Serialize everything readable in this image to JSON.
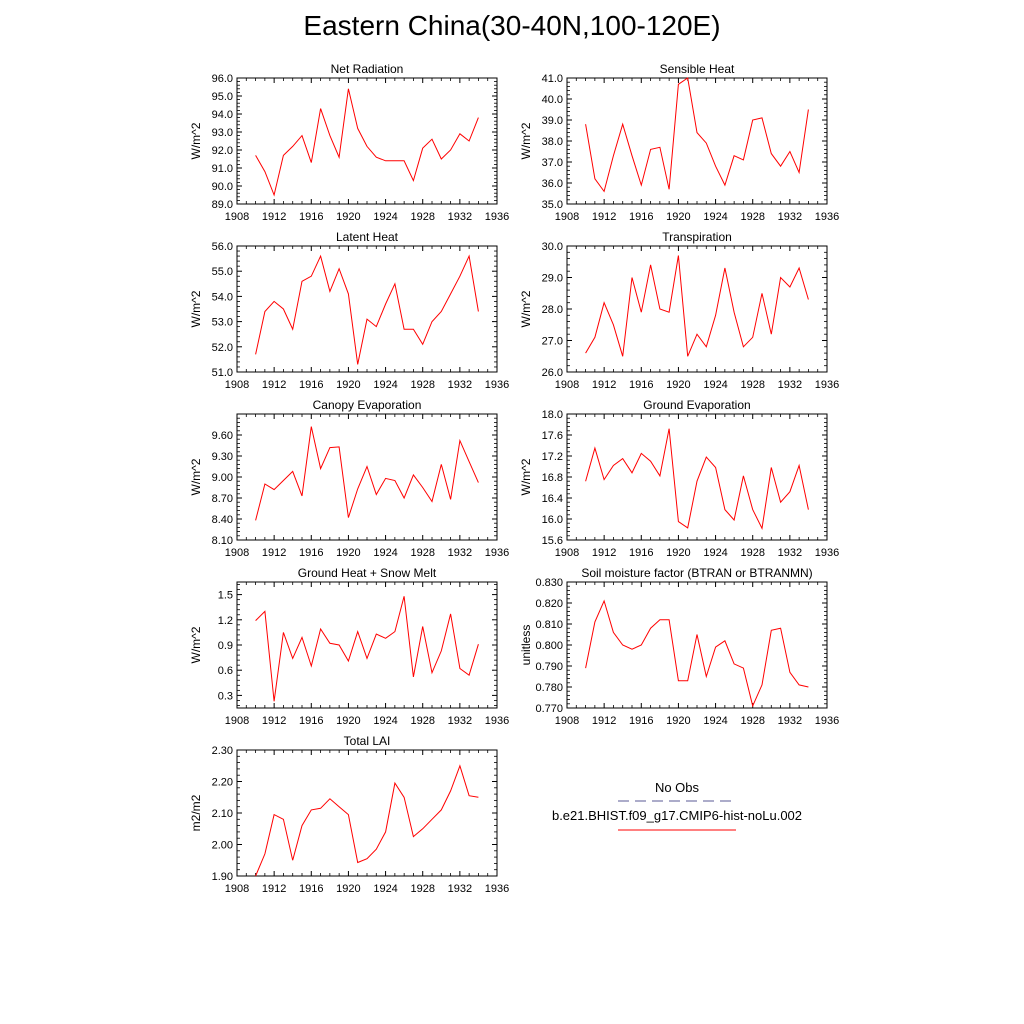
{
  "title": "Eastern China(30-40N,100-120E)",
  "colors": {
    "model": "#ff0000",
    "obs": "#5a5a96",
    "axis": "#000000"
  },
  "legend": {
    "obs_label": "No Obs",
    "model_label": "b.e21.BHIST.f09_g17.CMIP6-hist-noLu.002"
  },
  "chart_data": [
    {
      "type": "line",
      "title": "Net Radiation",
      "ylabel": "W/m^2",
      "xlim": [
        1908,
        1936
      ],
      "xticks": [
        1908,
        1912,
        1916,
        1920,
        1924,
        1928,
        1932,
        1936
      ],
      "ylim": [
        89.0,
        96.0
      ],
      "yticks": [
        89.0,
        90.0,
        91.0,
        92.0,
        93.0,
        94.0,
        95.0,
        96.0
      ],
      "ytick_labels": [
        "89.0",
        "90.0",
        "91.0",
        "92.0",
        "93.0",
        "94.0",
        "95.0",
        "96.0"
      ],
      "x": [
        1910,
        1911,
        1912,
        1913,
        1914,
        1915,
        1916,
        1917,
        1918,
        1919,
        1920,
        1921,
        1922,
        1923,
        1924,
        1925,
        1926,
        1927,
        1928,
        1929,
        1930,
        1931,
        1932,
        1933,
        1934
      ],
      "series": [
        {
          "values": [
            91.7,
            90.8,
            89.5,
            91.7,
            92.2,
            92.8,
            91.3,
            94.3,
            92.8,
            91.6,
            95.4,
            93.2,
            92.2,
            91.6,
            91.4,
            91.4,
            91.4,
            90.3,
            92.1,
            92.6,
            91.5,
            92.0,
            92.9,
            92.5,
            93.8
          ]
        }
      ]
    },
    {
      "type": "line",
      "title": "Sensible Heat",
      "ylabel": "W/m^2",
      "xlim": [
        1908,
        1936
      ],
      "xticks": [
        1908,
        1912,
        1916,
        1920,
        1924,
        1928,
        1932,
        1936
      ],
      "ylim": [
        35.0,
        41.0
      ],
      "yticks": [
        35.0,
        36.0,
        37.0,
        38.0,
        39.0,
        40.0,
        41.0
      ],
      "ytick_labels": [
        "35.0",
        "36.0",
        "37.0",
        "38.0",
        "39.0",
        "40.0",
        "41.0"
      ],
      "x": [
        1910,
        1911,
        1912,
        1913,
        1914,
        1915,
        1916,
        1917,
        1918,
        1919,
        1920,
        1921,
        1922,
        1923,
        1924,
        1925,
        1926,
        1927,
        1928,
        1929,
        1930,
        1931,
        1932,
        1933,
        1934
      ],
      "series": [
        {
          "values": [
            38.8,
            36.2,
            35.6,
            37.3,
            38.8,
            37.3,
            35.9,
            37.6,
            37.7,
            35.7,
            40.7,
            41.0,
            38.4,
            37.9,
            36.8,
            35.9,
            37.3,
            37.1,
            39.0,
            39.1,
            37.4,
            36.8,
            37.5,
            36.5,
            39.5
          ]
        }
      ]
    },
    {
      "type": "line",
      "title": "Latent Heat",
      "ylabel": "W/m^2",
      "xlim": [
        1908,
        1936
      ],
      "xticks": [
        1908,
        1912,
        1916,
        1920,
        1924,
        1928,
        1932,
        1936
      ],
      "ylim": [
        51.0,
        56.0
      ],
      "yticks": [
        51.0,
        52.0,
        53.0,
        54.0,
        55.0,
        56.0
      ],
      "ytick_labels": [
        "51.0",
        "52.0",
        "53.0",
        "54.0",
        "55.0",
        "56.0"
      ],
      "x": [
        1910,
        1911,
        1912,
        1913,
        1914,
        1915,
        1916,
        1917,
        1918,
        1919,
        1920,
        1921,
        1922,
        1923,
        1924,
        1925,
        1926,
        1927,
        1928,
        1929,
        1930,
        1931,
        1932,
        1933,
        1934
      ],
      "series": [
        {
          "values": [
            51.7,
            53.4,
            53.8,
            53.5,
            52.7,
            54.6,
            54.8,
            55.6,
            54.2,
            55.1,
            54.1,
            51.3,
            53.1,
            52.8,
            53.7,
            54.5,
            52.7,
            52.7,
            52.1,
            53.0,
            53.4,
            54.1,
            54.8,
            55.6,
            53.4
          ]
        }
      ]
    },
    {
      "type": "line",
      "title": "Transpiration",
      "ylabel": "W/m^2",
      "xlim": [
        1908,
        1936
      ],
      "xticks": [
        1908,
        1912,
        1916,
        1920,
        1924,
        1928,
        1932,
        1936
      ],
      "ylim": [
        26.0,
        30.0
      ],
      "yticks": [
        26.0,
        27.0,
        28.0,
        29.0,
        30.0
      ],
      "ytick_labels": [
        "26.0",
        "27.0",
        "28.0",
        "29.0",
        "30.0"
      ],
      "x": [
        1910,
        1911,
        1912,
        1913,
        1914,
        1915,
        1916,
        1917,
        1918,
        1919,
        1920,
        1921,
        1922,
        1923,
        1924,
        1925,
        1926,
        1927,
        1928,
        1929,
        1930,
        1931,
        1932,
        1933,
        1934
      ],
      "series": [
        {
          "values": [
            26.6,
            27.1,
            28.2,
            27.5,
            26.5,
            29.0,
            27.9,
            29.4,
            28.0,
            27.9,
            29.7,
            26.5,
            27.2,
            26.8,
            27.8,
            29.3,
            27.9,
            26.8,
            27.1,
            28.5,
            27.2,
            29.0,
            28.7,
            29.3,
            28.3
          ]
        }
      ]
    },
    {
      "type": "line",
      "title": "Canopy Evaporation",
      "ylabel": "W/m^2",
      "xlim": [
        1908,
        1936
      ],
      "xticks": [
        1908,
        1912,
        1916,
        1920,
        1924,
        1928,
        1932,
        1936
      ],
      "ylim": [
        8.1,
        9.9
      ],
      "yticks": [
        8.1,
        8.4,
        8.7,
        9.0,
        9.3,
        9.6
      ],
      "ytick_labels": [
        "8.10",
        "8.40",
        "8.70",
        "9.00",
        "9.30",
        "9.60"
      ],
      "x": [
        1910,
        1911,
        1912,
        1913,
        1914,
        1915,
        1916,
        1917,
        1918,
        1919,
        1920,
        1921,
        1922,
        1923,
        1924,
        1925,
        1926,
        1927,
        1928,
        1929,
        1930,
        1931,
        1932,
        1933,
        1934
      ],
      "series": [
        {
          "values": [
            8.38,
            8.9,
            8.82,
            8.95,
            9.08,
            8.73,
            9.72,
            9.12,
            9.42,
            9.43,
            8.42,
            8.83,
            9.15,
            8.75,
            8.98,
            8.95,
            8.7,
            9.03,
            8.85,
            8.65,
            9.18,
            8.68,
            9.52,
            9.22,
            8.92
          ]
        }
      ]
    },
    {
      "type": "line",
      "title": "Ground Evaporation",
      "ylabel": "W/m^2",
      "xlim": [
        1908,
        1936
      ],
      "xticks": [
        1908,
        1912,
        1916,
        1920,
        1924,
        1928,
        1932,
        1936
      ],
      "ylim": [
        15.6,
        18.0
      ],
      "yticks": [
        15.6,
        16.0,
        16.4,
        16.8,
        17.2,
        17.6,
        18.0
      ],
      "ytick_labels": [
        "15.6",
        "16.0",
        "16.4",
        "16.8",
        "17.2",
        "17.6",
        "18.0"
      ],
      "x": [
        1910,
        1911,
        1912,
        1913,
        1914,
        1915,
        1916,
        1917,
        1918,
        1919,
        1920,
        1921,
        1922,
        1923,
        1924,
        1925,
        1926,
        1927,
        1928,
        1929,
        1930,
        1931,
        1932,
        1933,
        1934
      ],
      "series": [
        {
          "values": [
            16.72,
            17.35,
            16.75,
            17.02,
            17.15,
            16.88,
            17.25,
            17.1,
            16.82,
            17.72,
            15.95,
            15.83,
            16.72,
            17.18,
            16.98,
            16.18,
            15.98,
            16.82,
            16.18,
            15.82,
            16.98,
            16.32,
            16.52,
            17.02,
            16.18
          ]
        }
      ]
    },
    {
      "type": "line",
      "title": "Ground Heat + Snow Melt",
      "ylabel": "W/m^2",
      "xlim": [
        1908,
        1936
      ],
      "xticks": [
        1908,
        1912,
        1916,
        1920,
        1924,
        1928,
        1932,
        1936
      ],
      "ylim": [
        0.15,
        1.65
      ],
      "yticks": [
        0.3,
        0.6,
        0.9,
        1.2,
        1.5
      ],
      "ytick_labels": [
        "0.3",
        "0.6",
        "0.9",
        "1.2",
        "1.5"
      ],
      "x": [
        1910,
        1911,
        1912,
        1913,
        1914,
        1915,
        1916,
        1917,
        1918,
        1919,
        1920,
        1921,
        1922,
        1923,
        1924,
        1925,
        1926,
        1927,
        1928,
        1929,
        1930,
        1931,
        1932,
        1933,
        1934
      ],
      "series": [
        {
          "values": [
            1.19,
            1.3,
            0.23,
            1.05,
            0.74,
            0.99,
            0.65,
            1.09,
            0.92,
            0.9,
            0.71,
            1.06,
            0.74,
            1.03,
            0.98,
            1.06,
            1.48,
            0.52,
            1.12,
            0.57,
            0.83,
            1.27,
            0.62,
            0.54,
            0.91
          ]
        }
      ]
    },
    {
      "type": "line",
      "title": "Soil moisture factor (BTRAN or BTRANMN)",
      "ylabel": "unitless",
      "xlim": [
        1908,
        1936
      ],
      "xticks": [
        1908,
        1912,
        1916,
        1920,
        1924,
        1928,
        1932,
        1936
      ],
      "ylim": [
        0.77,
        0.83
      ],
      "yticks": [
        0.77,
        0.78,
        0.79,
        0.8,
        0.81,
        0.82,
        0.83
      ],
      "ytick_labels": [
        "0.770",
        "0.780",
        "0.790",
        "0.800",
        "0.810",
        "0.820",
        "0.830"
      ],
      "x": [
        1910,
        1911,
        1912,
        1913,
        1914,
        1915,
        1916,
        1917,
        1918,
        1919,
        1920,
        1921,
        1922,
        1923,
        1924,
        1925,
        1926,
        1927,
        1928,
        1929,
        1930,
        1931,
        1932,
        1933,
        1934
      ],
      "series": [
        {
          "values": [
            0.789,
            0.811,
            0.821,
            0.806,
            0.8,
            0.798,
            0.8,
            0.808,
            0.812,
            0.812,
            0.783,
            0.783,
            0.805,
            0.785,
            0.799,
            0.802,
            0.791,
            0.789,
            0.771,
            0.781,
            0.807,
            0.808,
            0.787,
            0.781,
            0.78
          ]
        }
      ]
    },
    {
      "type": "line",
      "title": "Total LAI",
      "ylabel": "m2/m2",
      "xlim": [
        1908,
        1936
      ],
      "xticks": [
        1908,
        1912,
        1916,
        1920,
        1924,
        1928,
        1932,
        1936
      ],
      "ylim": [
        1.9,
        2.3
      ],
      "yticks": [
        1.9,
        2.0,
        2.1,
        2.2,
        2.3
      ],
      "ytick_labels": [
        "1.90",
        "2.00",
        "2.10",
        "2.20",
        "2.30"
      ],
      "x": [
        1910,
        1911,
        1912,
        1913,
        1914,
        1915,
        1916,
        1917,
        1918,
        1919,
        1920,
        1921,
        1922,
        1923,
        1924,
        1925,
        1926,
        1927,
        1928,
        1929,
        1930,
        1931,
        1932,
        1933,
        1934
      ],
      "series": [
        {
          "values": [
            1.9,
            1.97,
            2.095,
            2.08,
            1.95,
            2.06,
            2.11,
            2.115,
            2.145,
            2.12,
            2.095,
            1.943,
            1.955,
            1.985,
            2.04,
            2.195,
            2.15,
            2.025,
            2.05,
            2.08,
            2.11,
            2.17,
            2.25,
            2.155,
            2.15
          ]
        }
      ]
    }
  ]
}
